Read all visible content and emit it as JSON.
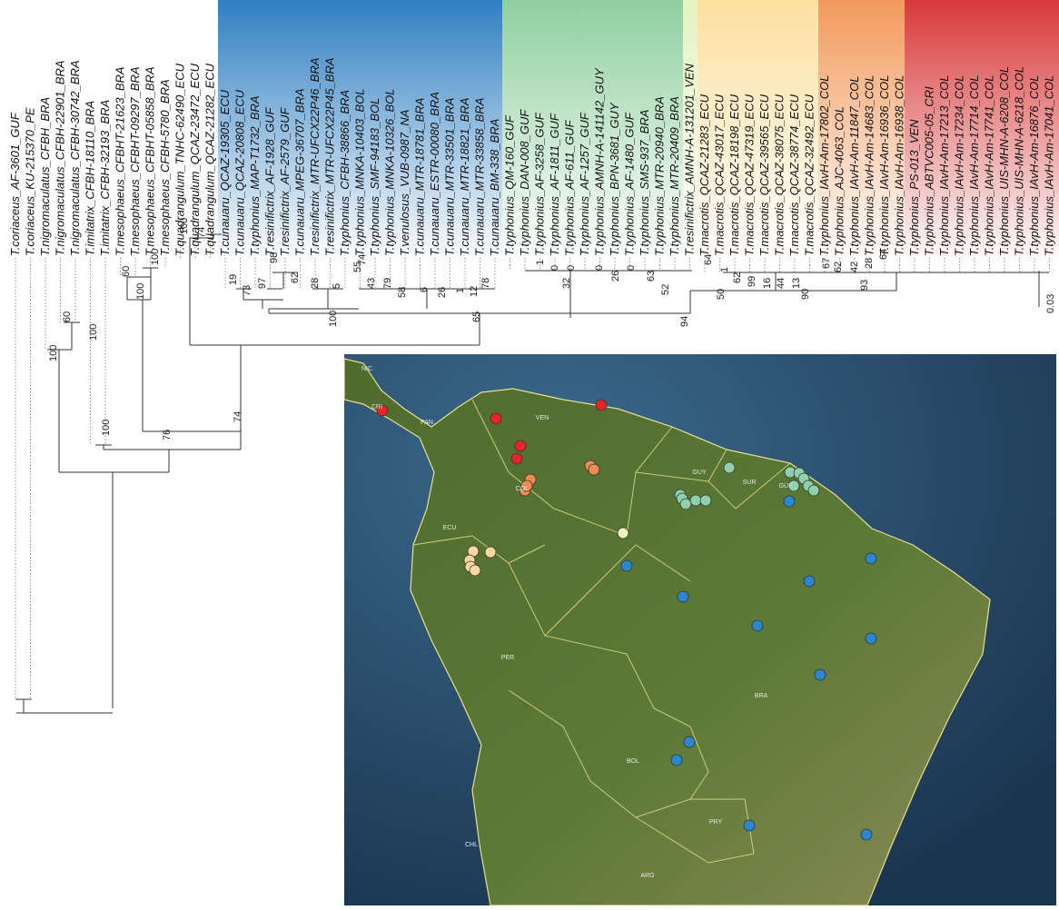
{
  "taxa": [
    "T.coriaceus_AF-3601_GUF",
    "T.coriaceus_KU-215370_PE",
    "T.nigromaculatus_CFBH_BRA",
    "T.nigromaculatus_CFBH-22901_BRA",
    "T.nigromaculatus_CFBH-30742_BRA",
    "T.imitatrix_CFBH-18110_BRA",
    "T.imitatrix_CFBH-32193_BRA",
    "T.mesophaeus_CFBHT-21623_BRA",
    "T.mesophaeus_CFBHT-09297_BRA",
    "T.mesophaeus_CFBHT-05858_BRA",
    "T.mesophaeus_CFBH-5780_BRA",
    "T.quadrangulum_TNHC-62490_ECU",
    "T.quadrangulum_QCAZ-23472_ECU",
    "T.quadrangulum_QCAZ-21282_ECU",
    "T.cunauaru_QCAZ-19305_ECU",
    "T.cunauaru_QCAZ-20808_ECU",
    "T.typhonius_MAP-T1732_BRA",
    "T.resinifictrix_AF-1928_GUF",
    "T.resinifictrix_AF-2579_GUF",
    "T.cunauaru_MPEG-36707_BRA",
    "T.resinifictrix_MTR-UFCX22P46_BRA",
    "T.resinifictrix_MTR-UFCX22P45_BRA",
    "T.typhonius_CFBH-38866_BRA",
    "T.typhonius_MNKA-10403_BOL",
    "T.typhonius_SMF-94183_BOL",
    "T.typhonius_MNKA-10326_BOL",
    "T.venulosus_VUB-0987_NA",
    "T.cunauaru_MTR-18781_BRA",
    "T.cunauaru_ESTR-00080_BRA",
    "T.cunauaru_MTR-33501_BRA",
    "T.cunauaru_MTR-18821_BRA",
    "T.cunauaru_MTR-33858_BRA",
    "T.cunauaru_BM-338_BRA",
    "T.typhonius_QM-160_GUF",
    "T.typhonius_DAN-008_GUF",
    "T.typhonius_AF-3258_GUF",
    "T.typhonius_AF-1811_GUF",
    "T.typhonius_AF-611_GUF",
    "T.typhonius_AF-1257_GUF",
    "T.typhonius_AMNH-A-141142_GUY",
    "T.typhonius_BPN-3681_GUY",
    "T.typhonius_AF-1480_GUF",
    "T.typhonius_SMS-937_BRA",
    "T.typhonius_MTR-20940_BRA",
    "T.typhonius_MTR-20409_BRA",
    "T.resinifictrix_AMNH-A-131201_VEN",
    "T.macrotis_QCAZ-21283_ECU",
    "T.macrotis_QCAZ-43017_ECU",
    "T.macrotis_QCAZ-18198_ECU",
    "T.macrotis_QCAZ-47319_ECU",
    "T.macrotis_QCAZ-39565_ECU",
    "T.macrotis_QCAZ-38075_ECU",
    "T.macrotis_QCAZ-38774_ECU",
    "T.macrotis_QCAZ-32492_ECU",
    "T.typhonius_IAvH-Am-17802_COL",
    "T.typhonius_AJC-4063_COL",
    "T.typhonius_IAvH-Am-11847_COL",
    "T.typhonius_IAvH-Am-14683_COL",
    "T.typhonius_IAvH-Am-16936_COL",
    "T.typhonius_IAvH-Am-16938_COL",
    "T.typhonius_PS-013_VEN",
    "T.typhonius_ABTVC005-05_CRI",
    "T.typhonius_IAvH-Am-17213_COL",
    "T.typhonius_IAvH-Am-17234_COL",
    "T.typhonius_IAvH-Am-17714_COL",
    "T.typhonius_IAvH-Am-17741_COL",
    "T.typhonius_UIS-MHN-A-6208_COL",
    "T.typhonius_UIS-MHN-A-6218_COL",
    "T.typhonius_IAvH-Am-16876_COL",
    "T.typhonius_IAvH-Am-17041_COL"
  ],
  "support_values": [
    "100",
    "60",
    "100",
    "100",
    "74",
    "76",
    "60",
    "100",
    "100",
    "100",
    "74",
    "19",
    "73",
    "97",
    "98",
    "62",
    "28",
    "5",
    "55",
    "74",
    "43",
    "79",
    "58",
    "6",
    "26",
    "1",
    "12",
    "78",
    "100",
    "65",
    "1",
    "0",
    "0",
    "32",
    "0",
    "26",
    "0",
    "63",
    "52",
    "94",
    "64",
    "50",
    "1",
    "62",
    "99",
    "16",
    "44",
    "13",
    "90",
    "67",
    "62",
    "42",
    "28",
    "93",
    "64"
  ],
  "scale_bar": "0.03",
  "map_labels": [
    "NIC",
    "CRI",
    "PAN",
    "VEN",
    "GUY",
    "SUR",
    "GUF",
    "COL",
    "ECU",
    "PER",
    "BRA",
    "BOL",
    "CHL",
    "PRY",
    "ARG"
  ]
}
